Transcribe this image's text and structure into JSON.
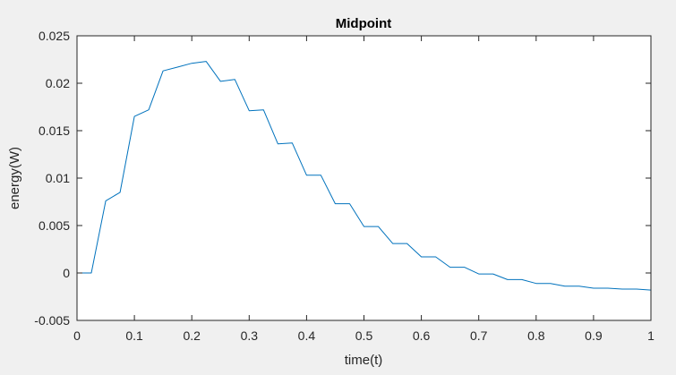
{
  "chart_data": {
    "type": "line",
    "title": "Midpoint",
    "xlabel": "time(t)",
    "ylabel": "energy(W)",
    "xlim": [
      0,
      1
    ],
    "ylim": [
      -0.005,
      0.025
    ],
    "xticks": [
      "0",
      "0.1",
      "0.2",
      "0.3",
      "0.4",
      "0.5",
      "0.6",
      "0.7",
      "0.8",
      "0.9",
      "1"
    ],
    "yticks": [
      "-0.005",
      "0",
      "0.005",
      "0.01",
      "0.015",
      "0.02",
      "0.025"
    ],
    "grid": false,
    "line_color": "#0072bd",
    "series": [
      {
        "x": [
          0,
          0.025,
          0.05,
          0.075,
          0.1,
          0.125,
          0.15,
          0.175,
          0.2,
          0.225,
          0.25,
          0.275,
          0.3,
          0.325,
          0.35,
          0.375,
          0.4,
          0.425,
          0.45,
          0.475,
          0.5,
          0.525,
          0.55,
          0.575,
          0.6,
          0.625,
          0.65,
          0.675,
          0.7,
          0.725,
          0.75,
          0.775,
          0.8,
          0.825,
          0.85,
          0.875,
          0.9,
          0.925,
          0.95,
          0.975,
          1.0
        ],
        "y": [
          0.0,
          0.0,
          0.0076,
          0.0085,
          0.0165,
          0.0172,
          0.0213,
          0.0217,
          0.0221,
          0.0223,
          0.0202,
          0.0204,
          0.0171,
          0.0172,
          0.0136,
          0.0137,
          0.0103,
          0.0103,
          0.0073,
          0.0073,
          0.0049,
          0.0049,
          0.0031,
          0.0031,
          0.0017,
          0.0017,
          0.0006,
          0.0006,
          -0.0001,
          -0.0001,
          -0.0007,
          -0.0007,
          -0.0011,
          -0.0011,
          -0.0014,
          -0.0014,
          -0.0016,
          -0.0016,
          -0.0017,
          -0.0017,
          -0.0018
        ]
      }
    ]
  }
}
